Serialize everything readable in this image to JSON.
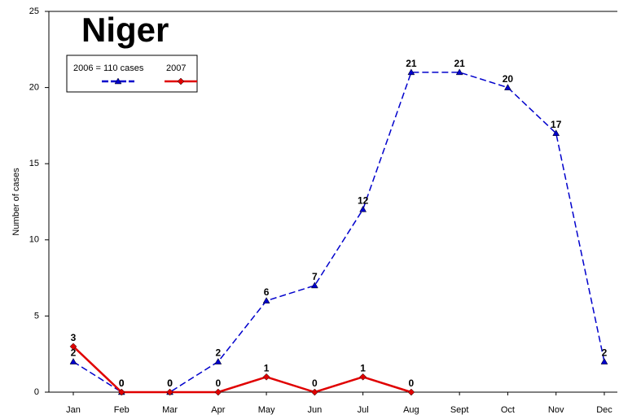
{
  "chart_data": {
    "type": "line",
    "title": "Niger",
    "y_label": "Number of cases",
    "categories": [
      "Jan",
      "Feb",
      "Mar",
      "Apr",
      "May",
      "Jun",
      "Jul",
      "Aug",
      "Sept",
      "Oct",
      "Nov",
      "Dec"
    ],
    "series": [
      {
        "name": "2006 = 110 cases",
        "color": "#0000cc",
        "dashed": true,
        "marker": "triangle",
        "values": [
          2,
          0,
          0,
          2,
          6,
          7,
          12,
          21,
          21,
          20,
          17,
          2
        ]
      },
      {
        "name": "2007",
        "color": "#e00000",
        "dashed": false,
        "marker": "diamond",
        "values": [
          3,
          0,
          0,
          0,
          1,
          0,
          1,
          0,
          null,
          null,
          null,
          null
        ]
      }
    ],
    "ylim": [
      0,
      25
    ],
    "yticks": [
      0,
      5,
      10,
      15,
      20,
      25
    ],
    "grid": false
  }
}
